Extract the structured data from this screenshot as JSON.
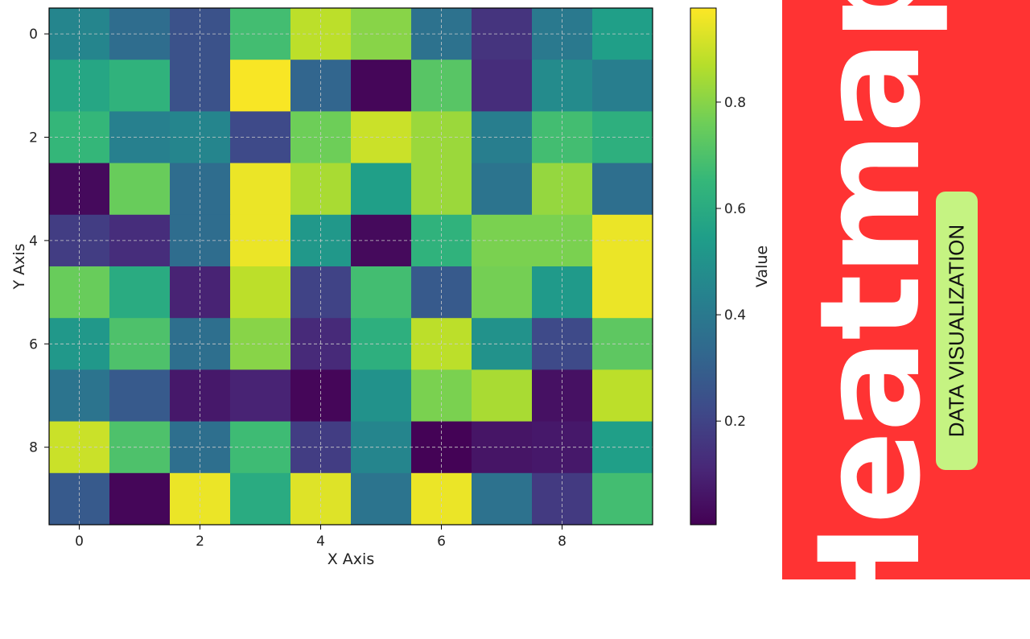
{
  "chart_data": {
    "type": "heatmap",
    "title": "",
    "xlabel": "X Axis",
    "ylabel": "Y Axis",
    "x_ticks": [
      0,
      2,
      4,
      6,
      8
    ],
    "y_ticks": [
      0,
      2,
      4,
      6,
      8
    ],
    "colormap": "viridis",
    "colorbar": {
      "label": "Value",
      "ticks": [
        0.2,
        0.4,
        0.6,
        0.8
      ],
      "range": [
        0.005,
        0.977
      ]
    },
    "grid": true,
    "values": [
      [
        0.45,
        0.35,
        0.25,
        0.68,
        0.88,
        0.8,
        0.37,
        0.15,
        0.4,
        0.55
      ],
      [
        0.58,
        0.63,
        0.25,
        0.97,
        0.32,
        0.02,
        0.72,
        0.13,
        0.47,
        0.42
      ],
      [
        0.65,
        0.43,
        0.45,
        0.22,
        0.76,
        0.9,
        0.83,
        0.42,
        0.68,
        0.62
      ],
      [
        0.03,
        0.75,
        0.35,
        0.95,
        0.85,
        0.55,
        0.83,
        0.38,
        0.82,
        0.36
      ],
      [
        0.18,
        0.13,
        0.35,
        0.95,
        0.52,
        0.03,
        0.63,
        0.78,
        0.78,
        0.95
      ],
      [
        0.75,
        0.6,
        0.1,
        0.88,
        0.2,
        0.68,
        0.28,
        0.77,
        0.53,
        0.95
      ],
      [
        0.52,
        0.7,
        0.36,
        0.8,
        0.12,
        0.62,
        0.88,
        0.5,
        0.22,
        0.73
      ],
      [
        0.38,
        0.28,
        0.07,
        0.1,
        0.02,
        0.5,
        0.78,
        0.85,
        0.05,
        0.88
      ],
      [
        0.9,
        0.7,
        0.36,
        0.67,
        0.18,
        0.45,
        0.01,
        0.06,
        0.07,
        0.55
      ],
      [
        0.28,
        0.02,
        0.95,
        0.6,
        0.93,
        0.38,
        0.95,
        0.37,
        0.17,
        0.68
      ]
    ]
  },
  "side_panel": {
    "title": "Heatmap",
    "badge": "DATA VISUALIZATION",
    "background_color": "#ff3333",
    "badge_color": "#c5f382"
  }
}
